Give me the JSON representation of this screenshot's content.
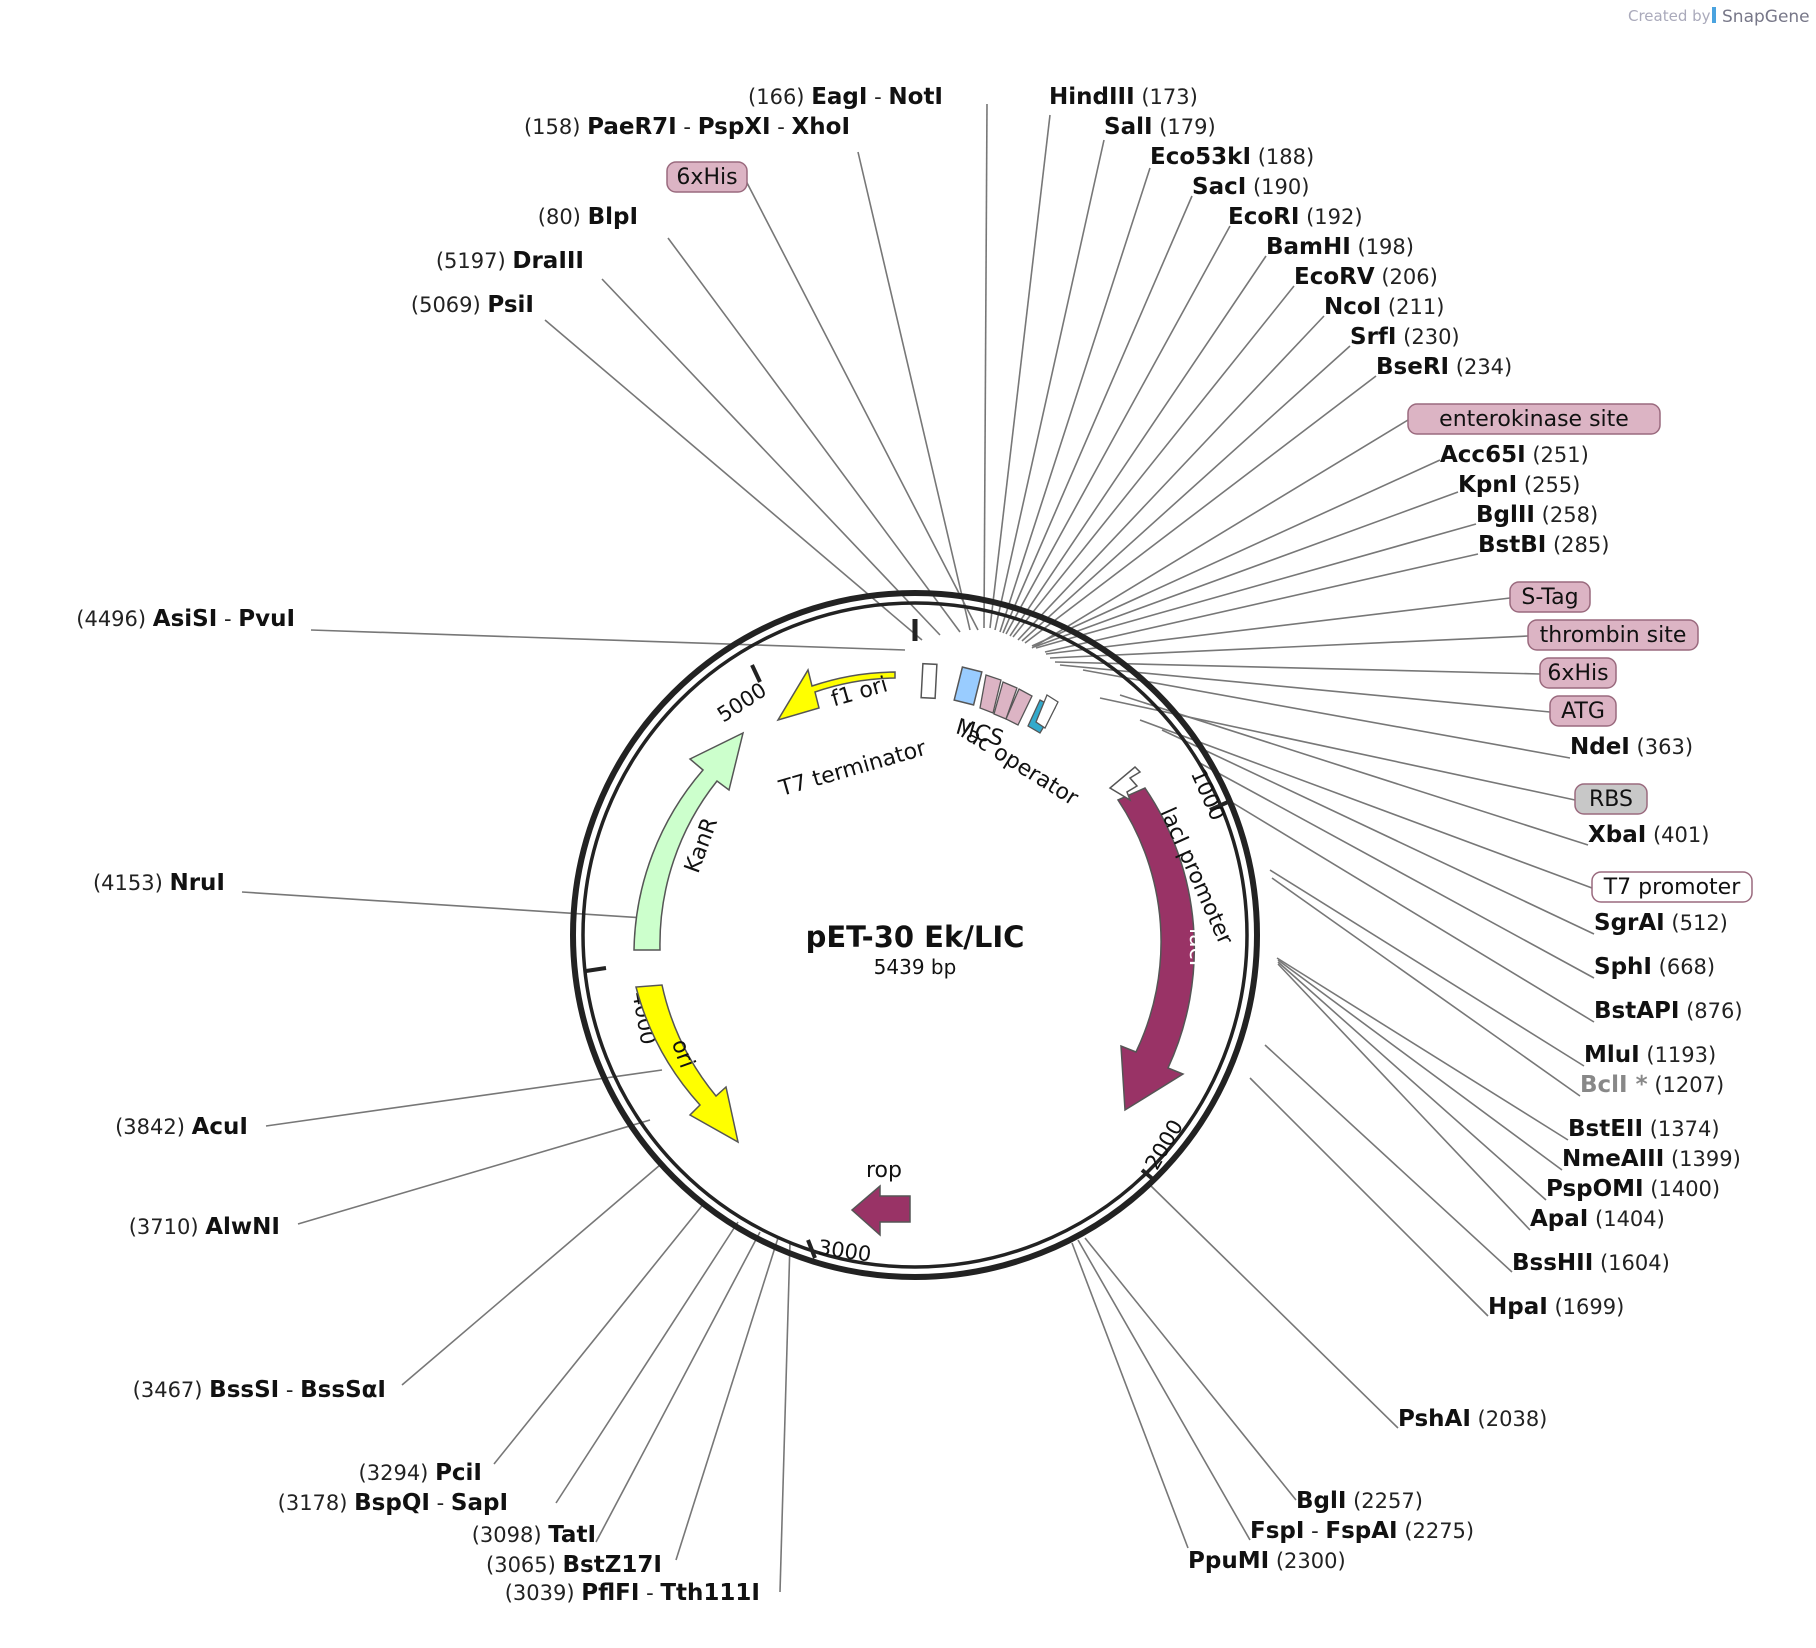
{
  "watermark": {
    "created_by": "Created by",
    "brand": "SnapGene"
  },
  "plasmid": {
    "name": "pET-30 Ek/LIC",
    "length": "5439 bp"
  },
  "tick_marks": [
    "1000",
    "2000",
    "3000",
    "4000",
    "5000"
  ],
  "sites": [
    {
      "pos": "(166)",
      "names": [
        "EagI",
        "NotI"
      ]
    },
    {
      "pos": "(158)",
      "names": [
        "PaeR7I",
        "PspXI",
        "XhoI"
      ]
    },
    {
      "pos": "(80)",
      "names": [
        "BlpI"
      ]
    },
    {
      "pos": "(5197)",
      "names": [
        "DraIII"
      ]
    },
    {
      "pos": "(5069)",
      "names": [
        "PsiI"
      ]
    },
    {
      "pos": "(4496)",
      "names": [
        "AsiSI",
        "PvuI"
      ]
    },
    {
      "pos": "(4153)",
      "names": [
        "NruI"
      ]
    },
    {
      "pos": "(3842)",
      "names": [
        "AcuI"
      ]
    },
    {
      "pos": "(3710)",
      "names": [
        "AlwNI"
      ]
    },
    {
      "pos": "(3467)",
      "names": [
        "BssSI",
        "BssSαI"
      ]
    },
    {
      "pos": "(3294)",
      "names": [
        "PciI"
      ]
    },
    {
      "pos": "(3178)",
      "names": [
        "BspQI",
        "SapI"
      ]
    },
    {
      "pos": "(3098)",
      "names": [
        "TatI"
      ]
    },
    {
      "pos": "(3065)",
      "names": [
        "BstZ17I"
      ]
    },
    {
      "pos": "(3039)",
      "names": [
        "PflFI",
        "Tth111I"
      ]
    },
    {
      "pos": "(173)",
      "names": [
        "HindIII"
      ]
    },
    {
      "pos": "(179)",
      "names": [
        "SalI"
      ]
    },
    {
      "pos": "(188)",
      "names": [
        "Eco53kI"
      ]
    },
    {
      "pos": "(190)",
      "names": [
        "SacI"
      ]
    },
    {
      "pos": "(192)",
      "names": [
        "EcoRI"
      ]
    },
    {
      "pos": "(198)",
      "names": [
        "BamHI"
      ]
    },
    {
      "pos": "(206)",
      "names": [
        "EcoRV"
      ]
    },
    {
      "pos": "(211)",
      "names": [
        "NcoI"
      ]
    },
    {
      "pos": "(230)",
      "names": [
        "SrfI"
      ]
    },
    {
      "pos": "(234)",
      "names": [
        "BseRI"
      ]
    },
    {
      "pos": "(251)",
      "names": [
        "Acc65I"
      ]
    },
    {
      "pos": "(255)",
      "names": [
        "KpnI"
      ]
    },
    {
      "pos": "(258)",
      "names": [
        "BglII"
      ]
    },
    {
      "pos": "(285)",
      "names": [
        "BstBI"
      ]
    },
    {
      "pos": "(363)",
      "names": [
        "NdeI"
      ]
    },
    {
      "pos": "(401)",
      "names": [
        "XbaI"
      ]
    },
    {
      "pos": "(512)",
      "names": [
        "SgrAI"
      ]
    },
    {
      "pos": "(668)",
      "names": [
        "SphI"
      ]
    },
    {
      "pos": "(876)",
      "names": [
        "BstAPI"
      ]
    },
    {
      "pos": "(1193)",
      "names": [
        "MluI"
      ]
    },
    {
      "pos": "(1207)",
      "names": [
        "BclI *"
      ],
      "style": "grey"
    },
    {
      "pos": "(1374)",
      "names": [
        "BstEII"
      ]
    },
    {
      "pos": "(1399)",
      "names": [
        "NmeAIII"
      ]
    },
    {
      "pos": "(1400)",
      "names": [
        "PspOMI"
      ]
    },
    {
      "pos": "(1404)",
      "names": [
        "ApaI"
      ]
    },
    {
      "pos": "(1604)",
      "names": [
        "BssHII"
      ]
    },
    {
      "pos": "(1699)",
      "names": [
        "HpaI"
      ]
    },
    {
      "pos": "(2038)",
      "names": [
        "PshAI"
      ]
    },
    {
      "pos": "(2257)",
      "names": [
        "BglI"
      ]
    },
    {
      "pos": "(2275)",
      "names": [
        "FspI",
        "FspAI"
      ]
    },
    {
      "pos": "(2300)",
      "names": [
        "PpuMI"
      ]
    }
  ],
  "feature_tags": [
    {
      "label": "6xHis",
      "color": "#dcb4c4"
    },
    {
      "label": "enterokinase site",
      "color": "#dcb4c4"
    },
    {
      "label": "S-Tag",
      "color": "#dcb4c4"
    },
    {
      "label": "thrombin site",
      "color": "#dcb4c4"
    },
    {
      "label": "6xHis",
      "color": "#dcb4c4"
    },
    {
      "label": "ATG",
      "color": "#dcb4c4"
    },
    {
      "label": "RBS",
      "color": "#c8c8c8"
    },
    {
      "label": "T7 promoter",
      "color": "#ffffff"
    }
  ],
  "features": [
    {
      "label": "f1 ori",
      "color": "#ffff00"
    },
    {
      "label": "KanR",
      "color": "#ccffcc"
    },
    {
      "label": "ori",
      "color": "#ffff00"
    },
    {
      "label": "rop",
      "color": "#993366"
    },
    {
      "label": "lacI",
      "color": "#993366"
    },
    {
      "label": "lacI promoter",
      "color": "#ffffff"
    },
    {
      "label": "T7 terminator",
      "color": "#ffffff"
    },
    {
      "label": "MCS",
      "color": "#99ccff"
    },
    {
      "label": "lac operator",
      "color": "#33aacc"
    }
  ]
}
